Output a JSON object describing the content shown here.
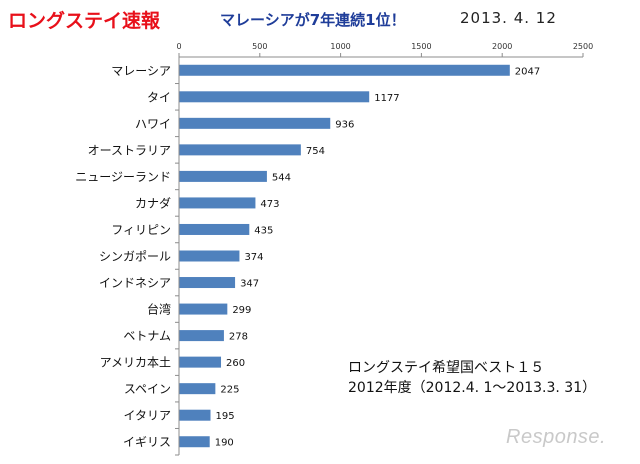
{
  "header": {
    "title": "ロングステイ速報",
    "subtitle": "マレーシアが7年連続1位！",
    "date": "2013. 4. 12"
  },
  "caption": {
    "line1": "ロングステイ希望国ベスト１５",
    "line2": "2012年度（2012.4. 1～2013.3. 31）"
  },
  "logo": {
    "text": "Response."
  },
  "colors": {
    "bar": "#4f81bd",
    "title": "#e8101a",
    "subtitle": "#1f3d99"
  },
  "chart_data": {
    "type": "bar",
    "orientation": "horizontal",
    "categories": [
      "マレーシア",
      "タイ",
      "ハワイ",
      "オーストラリア",
      "ニュージーランド",
      "カナダ",
      "フィリピン",
      "シンガポール",
      "インドネシア",
      "台湾",
      "ベトナム",
      "アメリカ本土",
      "スペイン",
      "イタリア",
      "イギリス"
    ],
    "values": [
      2047,
      1177,
      936,
      754,
      544,
      473,
      435,
      374,
      347,
      299,
      278,
      260,
      225,
      195,
      190
    ],
    "xlim": [
      0,
      2500
    ],
    "xticks": [
      0,
      500,
      1000,
      1500,
      2000,
      2500
    ],
    "x_axis_position": "top",
    "grid": false,
    "data_labels": true
  }
}
